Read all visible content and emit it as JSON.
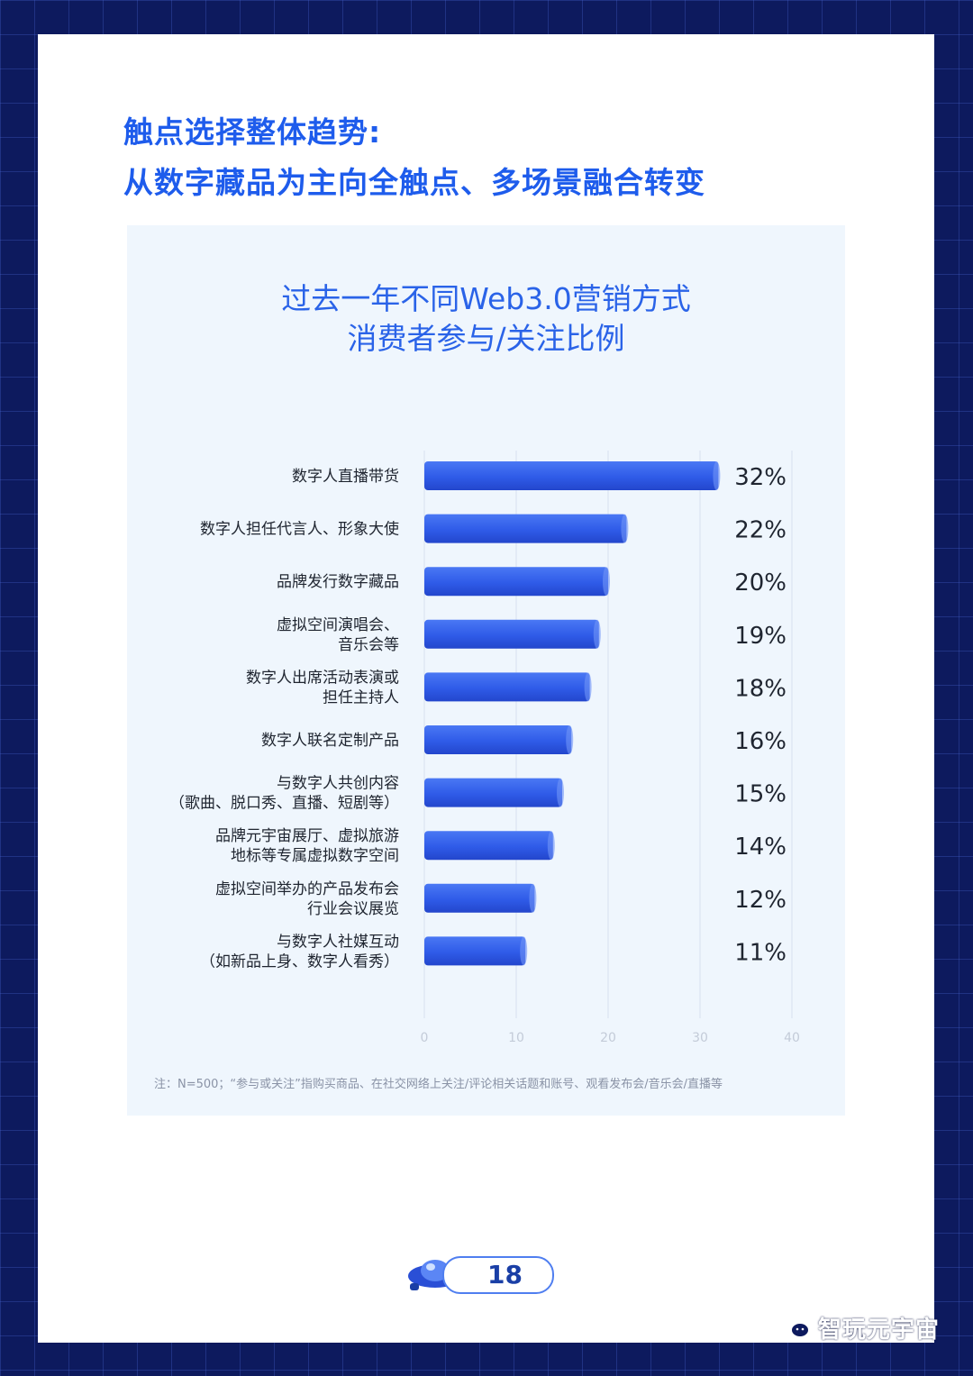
{
  "heading": {
    "line1": "触点选择整体趋势:",
    "line2": "从数字藏品为主向全触点、多场景融合转变"
  },
  "colors": {
    "heading": "#1e5cec",
    "bar": "#2f5be8",
    "panel": "#eff6fd",
    "frame": "#0d1a5e"
  },
  "chart_data": {
    "type": "bar",
    "orientation": "horizontal",
    "title_line1": "过去一年不同Web3.0营销方式",
    "title_line2": "消费者参与/关注比例",
    "categories": [
      [
        "数字人直播带货"
      ],
      [
        "数字人担任代言人、形象大使"
      ],
      [
        "品牌发行数字藏品"
      ],
      [
        "虚拟空间演唱会、",
        "音乐会等"
      ],
      [
        "数字人出席活动表演或",
        "担任主持人"
      ],
      [
        "数字人联名定制产品"
      ],
      [
        "与数字人共创内容",
        "（歌曲、脱口秀、直播、短剧等）"
      ],
      [
        "品牌元宇宙展厅、虚拟旅游",
        "地标等专属虚拟数字空间"
      ],
      [
        "虚拟空间举办的产品发布会",
        "行业会议展览"
      ],
      [
        "与数字人社媒互动",
        "（如新品上身、数字人看秀）"
      ]
    ],
    "values": [
      32,
      22,
      20,
      19,
      18,
      16,
      15,
      14,
      12,
      11
    ],
    "value_labels": [
      "32%",
      "22%",
      "20%",
      "19%",
      "18%",
      "16%",
      "15%",
      "14%",
      "12%",
      "11%"
    ],
    "xlim": [
      0,
      40
    ],
    "xticks": [
      "0",
      "10",
      "20",
      "30",
      "40"
    ],
    "grid": true
  },
  "footnote": "注：N=500；“参与或关注”指购买商品、在社交网络上关注/评论相关话题和账号、观看发布会/音乐会/直播等",
  "page_number": "18",
  "watermark": "智玩元宇宙"
}
